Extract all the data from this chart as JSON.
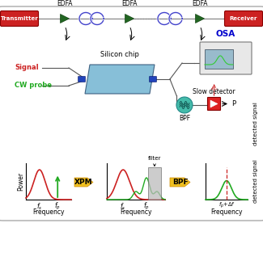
{
  "bg_color": "#ffffff",
  "transmitter_color": "#cc2222",
  "receiver_color": "#cc2222",
  "edfa_color": "#226622",
  "signal_color": "#cc2222",
  "probe_color": "#22aa22",
  "chip_color_face": "#7ab8d4",
  "chip_color_edge": "#335577",
  "osa_label_color": "#0000cc",
  "arrow_yellow": "#f0c020",
  "arrow_yellow_edge": "#cc8800",
  "line_color": "#888888",
  "connector_color": "#2244bb",
  "bpf_face": "#44bbaa",
  "bpf_edge": "#228888",
  "detector_face": "#dd2222",
  "detector_edge": "#880000",
  "coil_color": "#4444cc",
  "curve_color": "#555555",
  "edfa_labels": [
    "EDFA",
    "EDFA",
    "EDFA"
  ],
  "signal_label": "Signal",
  "probe_label": "CW probe",
  "xpm_label": "XPM",
  "bpf_label_arrow": "BPF",
  "filter_label": "filter",
  "osa_label": "OSA",
  "silicon_chip_label": "Silicon chip",
  "slow_detector_label": "Slow detector",
  "bpf_label": "BPF",
  "p_label": "P",
  "transmitter_label": "Transmitter",
  "receiver_label": "Receiver",
  "axis_label_x": "Frequency",
  "axis_label_y": "Power",
  "axis_label_y3": "detected signal",
  "freq_s": "$f_s$",
  "freq_p": "$f_p$",
  "freq_p_df": "$f_p$+$\\Delta f$"
}
